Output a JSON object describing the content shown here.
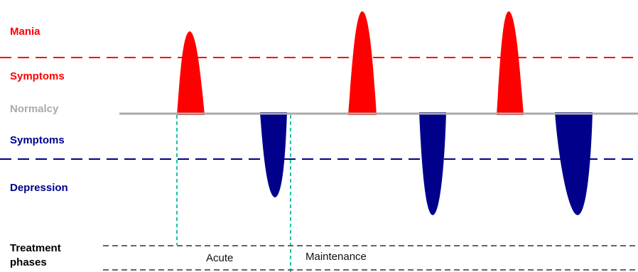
{
  "labels": {
    "mania": "Mania",
    "mania_symptoms": "Symptoms",
    "normalcy": "Normalcy",
    "depression_symptoms": "Symptoms",
    "depression": "Depression",
    "treatment_line1": "Treatment",
    "treatment_line2": "phases"
  },
  "phases": {
    "acute": "Acute",
    "maintenance": "Maintenance"
  },
  "colors": {
    "mania": "#ff0000",
    "depression": "#00008b",
    "normalcy": "#aaaaaa",
    "phase_divider": "#20c0a0",
    "phase_band": "#666666"
  }
}
